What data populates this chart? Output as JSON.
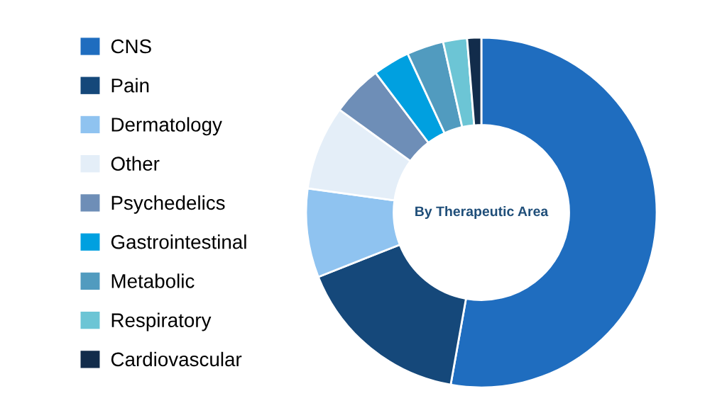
{
  "chart_data": {
    "type": "donut",
    "title": "By Therapeutic Area",
    "categories": [
      "CNS",
      "Pain",
      "Dermatology",
      "Other",
      "Psychedelics",
      "Gastrointestinal",
      "Metabolic",
      "Respiratory",
      "Cardiovascular"
    ],
    "values": [
      52.8,
      16.2,
      8.2,
      7.8,
      4.7,
      3.4,
      3.4,
      2.2,
      1.3
    ],
    "colors": [
      "#1f6dbf",
      "#15487a",
      "#8fc3f0",
      "#e4eef8",
      "#6e8eb7",
      "#00a0e0",
      "#519bbf",
      "#6cc5d5",
      "#122c4b"
    ],
    "legend": "left"
  }
}
